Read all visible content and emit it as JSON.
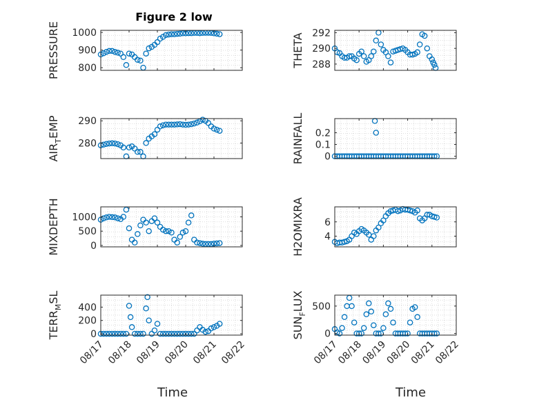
{
  "figure": {
    "title": "Figure 2 low",
    "xlabel": "Time"
  },
  "colors": {
    "marker": "#0072bd",
    "axis": "#262626",
    "grid": "#cfcfcf"
  },
  "chart_data": [
    {
      "type": "scatter",
      "ylabel": "PRESSURE",
      "ylim": [
        785,
        1012
      ],
      "yticks": [
        800,
        900,
        1000
      ],
      "xlim": [
        0,
        5
      ],
      "xticklabels": [
        "08/17",
        "08/18",
        "08/19",
        "08/20",
        "08/21",
        "08/22"
      ],
      "x": [
        0,
        0.1,
        0.2,
        0.3,
        0.4,
        0.5,
        0.6,
        0.7,
        0.8,
        0.9,
        1,
        1.1,
        1.2,
        1.3,
        1.4,
        1.5,
        1.6,
        1.7,
        1.8,
        1.9,
        2,
        2.1,
        2.2,
        2.3,
        2.4,
        2.5,
        2.6,
        2.7,
        2.8,
        2.9,
        3,
        3.1,
        3.2,
        3.3,
        3.4,
        3.5,
        3.6,
        3.7,
        3.8,
        3.9,
        4,
        4.1,
        4.2
      ],
      "y": [
        875,
        882,
        890,
        895,
        895,
        890,
        885,
        880,
        860,
        815,
        880,
        875,
        860,
        845,
        840,
        800,
        880,
        910,
        918,
        930,
        945,
        965,
        975,
        985,
        988,
        990,
        990,
        992,
        993,
        995,
        995,
        996,
        996,
        997,
        997,
        996,
        997,
        998,
        998,
        997,
        995,
        993,
        990
      ]
    },
    {
      "type": "scatter",
      "ylabel": "THETA",
      "ylim": [
        287.2,
        292.3
      ],
      "yticks": [
        288,
        290,
        292
      ],
      "xlim": [
        0,
        5
      ],
      "xticklabels": [
        "08/17",
        "08/18",
        "08/19",
        "08/20",
        "08/21",
        "08/22"
      ],
      "x": [
        0,
        0.1,
        0.2,
        0.3,
        0.4,
        0.5,
        0.6,
        0.7,
        0.8,
        0.9,
        1,
        1.1,
        1.2,
        1.3,
        1.4,
        1.5,
        1.6,
        1.7,
        1.8,
        1.9,
        2,
        2.1,
        2.2,
        2.3,
        2.4,
        2.5,
        2.6,
        2.7,
        2.8,
        2.9,
        3,
        3.1,
        3.2,
        3.3,
        3.4,
        3.5,
        3.6,
        3.7,
        3.8,
        3.9,
        4,
        4.05,
        4.1,
        4.15
      ],
      "y": [
        290,
        289.5,
        289.4,
        289,
        288.8,
        288.8,
        289,
        289,
        288.7,
        288.5,
        289.3,
        289.6,
        289,
        288.3,
        288.5,
        289,
        289.6,
        291,
        292,
        290.5,
        289.8,
        289.5,
        289,
        288.2,
        289.6,
        289.7,
        289.8,
        289.9,
        290,
        289.8,
        289.5,
        289.2,
        289.2,
        289.3,
        289.5,
        290.5,
        291.8,
        291.6,
        290,
        289,
        288.6,
        288.2,
        287.9,
        287.5
      ]
    },
    {
      "type": "scatter",
      "ylabel": "AIR_TEMP",
      "ylim": [
        273,
        291
      ],
      "yticks": [
        280,
        290
      ],
      "xlim": [
        0,
        5
      ],
      "xticklabels": [
        "08/17",
        "08/18",
        "08/19",
        "08/20",
        "08/21",
        "08/22"
      ],
      "x": [
        0,
        0.1,
        0.2,
        0.3,
        0.4,
        0.5,
        0.6,
        0.7,
        0.8,
        0.9,
        1,
        1.1,
        1.2,
        1.3,
        1.4,
        1.5,
        1.6,
        1.7,
        1.8,
        1.9,
        2,
        2.1,
        2.2,
        2.3,
        2.4,
        2.5,
        2.6,
        2.7,
        2.8,
        2.9,
        3,
        3.1,
        3.2,
        3.3,
        3.4,
        3.5,
        3.6,
        3.7,
        3.8,
        3.9,
        4,
        4.1,
        4.2
      ],
      "y": [
        279,
        279.3,
        279.6,
        279.8,
        279.9,
        279.8,
        279.5,
        279,
        278,
        274,
        278,
        278.5,
        277.5,
        276,
        276,
        274,
        280,
        282,
        283,
        284,
        286,
        287.5,
        288,
        288.3,
        288.3,
        288.3,
        288.3,
        288.4,
        288.5,
        288.3,
        288.2,
        288.3,
        288.5,
        288.8,
        289.2,
        289.8,
        290.5,
        290,
        289,
        287.5,
        286.5,
        286,
        285.5
      ]
    },
    {
      "type": "scatter",
      "ylabel": "RAINFALL",
      "ylim": [
        -0.02,
        0.32
      ],
      "yticks": [
        0,
        0.1,
        0.2
      ],
      "xlim": [
        0,
        5
      ],
      "xticklabels": [
        "08/17",
        "08/18",
        "08/19",
        "08/20",
        "08/21",
        "08/22"
      ],
      "x": [
        0,
        0.1,
        0.2,
        0.3,
        0.4,
        0.5,
        0.6,
        0.7,
        0.8,
        0.9,
        1,
        1.1,
        1.2,
        1.3,
        1.4,
        1.5,
        1.6,
        1.7,
        1.8,
        1.9,
        2,
        2.1,
        2.2,
        2.3,
        2.4,
        2.5,
        2.6,
        2.7,
        2.8,
        2.9,
        3,
        3.1,
        3.2,
        3.3,
        3.4,
        3.5,
        3.6,
        3.7,
        3.8,
        3.9,
        4,
        4.1,
        4.2,
        1.65,
        1.7
      ],
      "y": [
        0,
        0,
        0,
        0,
        0,
        0,
        0,
        0,
        0,
        0,
        0,
        0,
        0,
        0,
        0,
        0,
        0,
        0,
        0,
        0,
        0,
        0,
        0,
        0,
        0,
        0,
        0,
        0,
        0,
        0,
        0,
        0,
        0,
        0,
        0,
        0,
        0,
        0,
        0,
        0,
        0,
        0,
        0,
        0.3,
        0.2
      ]
    },
    {
      "type": "scatter",
      "ylabel": "MIXDEPTH",
      "ylim": [
        -50,
        1350
      ],
      "yticks": [
        0,
        500,
        1000
      ],
      "xlim": [
        0,
        5
      ],
      "xticklabels": [
        "08/17",
        "08/18",
        "08/19",
        "08/20",
        "08/21",
        "08/22"
      ],
      "x": [
        0,
        0.1,
        0.2,
        0.3,
        0.4,
        0.5,
        0.6,
        0.7,
        0.8,
        0.9,
        1,
        1.1,
        1.2,
        1.3,
        1.4,
        1.5,
        1.6,
        1.7,
        1.8,
        1.9,
        2,
        2.1,
        2.2,
        2.3,
        2.4,
        2.5,
        2.6,
        2.7,
        2.8,
        2.9,
        3,
        3.1,
        3.2,
        3.3,
        3.4,
        3.5,
        3.6,
        3.7,
        3.8,
        3.9,
        4,
        4.1,
        4.2
      ],
      "y": [
        900,
        950,
        980,
        1000,
        990,
        980,
        950,
        920,
        1000,
        1250,
        600,
        200,
        100,
        400,
        700,
        900,
        800,
        500,
        850,
        950,
        800,
        650,
        550,
        500,
        500,
        450,
        200,
        100,
        300,
        450,
        500,
        800,
        1050,
        200,
        100,
        80,
        60,
        50,
        50,
        50,
        60,
        70,
        80
      ]
    },
    {
      "type": "scatter",
      "ylabel": "H2OMIXRA",
      "ylim": [
        2.5,
        8.1
      ],
      "yticks": [
        4,
        6
      ],
      "xlim": [
        0,
        5
      ],
      "xticklabels": [
        "08/17",
        "08/18",
        "08/19",
        "08/20",
        "08/21",
        "08/22"
      ],
      "x": [
        0,
        0.1,
        0.2,
        0.3,
        0.4,
        0.5,
        0.6,
        0.7,
        0.8,
        0.9,
        1,
        1.1,
        1.2,
        1.3,
        1.4,
        1.5,
        1.6,
        1.7,
        1.8,
        1.9,
        2,
        2.1,
        2.2,
        2.3,
        2.4,
        2.5,
        2.6,
        2.7,
        2.8,
        2.9,
        3,
        3.1,
        3.2,
        3.3,
        3.4,
        3.5,
        3.6,
        3.7,
        3.8,
        3.9,
        4,
        4.1,
        4.2
      ],
      "y": [
        3.2,
        3,
        3.1,
        3.1,
        3.2,
        3.3,
        3.5,
        4,
        4.5,
        4.3,
        4.7,
        5,
        4.8,
        4.5,
        4.2,
        3.5,
        4,
        4.8,
        5.2,
        5.8,
        6.2,
        6.8,
        7.2,
        7.5,
        7.6,
        7.7,
        7.5,
        7.6,
        7.8,
        7.7,
        7.7,
        7.6,
        7.5,
        7.3,
        7.6,
        6.5,
        6.2,
        6.5,
        7,
        7,
        6.8,
        6.7,
        6.6
      ]
    },
    {
      "type": "scatter",
      "ylabel": "TERR_MSL",
      "ylim": [
        -20,
        580
      ],
      "yticks": [
        0,
        200,
        400
      ],
      "xlim": [
        0,
        5
      ],
      "xticklabels": [
        "08/17",
        "08/18",
        "08/19",
        "08/20",
        "08/21",
        "08/22"
      ],
      "x": [
        0,
        0.1,
        0.2,
        0.3,
        0.4,
        0.5,
        0.6,
        0.7,
        0.8,
        0.9,
        1,
        1.05,
        1.1,
        1.2,
        1.3,
        1.4,
        1.5,
        1.6,
        1.65,
        1.7,
        1.8,
        1.9,
        2,
        2.1,
        2.2,
        2.3,
        2.4,
        2.5,
        2.6,
        2.7,
        2.8,
        2.9,
        3,
        3.1,
        3.2,
        3.3,
        3.4,
        3.5,
        3.6,
        3.7,
        3.8,
        3.9,
        4,
        4.1,
        4.2
      ],
      "y": [
        0,
        0,
        0,
        0,
        0,
        0,
        0,
        0,
        0,
        0,
        420,
        250,
        100,
        0,
        0,
        0,
        0,
        380,
        550,
        200,
        0,
        50,
        150,
        0,
        0,
        0,
        0,
        0,
        0,
        0,
        0,
        0,
        0,
        0,
        0,
        0,
        50,
        100,
        60,
        30,
        40,
        80,
        100,
        120,
        150
      ]
    },
    {
      "type": "scatter",
      "ylabel": "SUN_FLUX",
      "ylim": [
        -30,
        700
      ],
      "yticks": [
        0,
        500
      ],
      "xlim": [
        0,
        5
      ],
      "xticklabels": [
        "08/17",
        "08/18",
        "08/19",
        "08/20",
        "08/21",
        "08/22"
      ],
      "x": [
        0,
        0.1,
        0.2,
        0.3,
        0.4,
        0.5,
        0.6,
        0.7,
        0.8,
        0.9,
        1,
        1.1,
        1.2,
        1.3,
        1.4,
        1.5,
        1.6,
        1.7,
        1.8,
        1.9,
        2,
        2.1,
        2.2,
        2.3,
        2.4,
        2.5,
        2.6,
        2.7,
        2.8,
        2.9,
        3,
        3.1,
        3.2,
        3.3,
        3.4,
        3.5,
        3.6,
        3.7,
        3.8,
        3.9,
        4,
        4.1,
        4.2
      ],
      "y": [
        80,
        20,
        0,
        100,
        300,
        500,
        650,
        500,
        200,
        0,
        0,
        0,
        100,
        350,
        550,
        400,
        150,
        0,
        0,
        0,
        100,
        350,
        550,
        450,
        200,
        0,
        0,
        0,
        0,
        0,
        0,
        200,
        450,
        480,
        300,
        0,
        0,
        0,
        0,
        0,
        0,
        0,
        0
      ]
    }
  ]
}
